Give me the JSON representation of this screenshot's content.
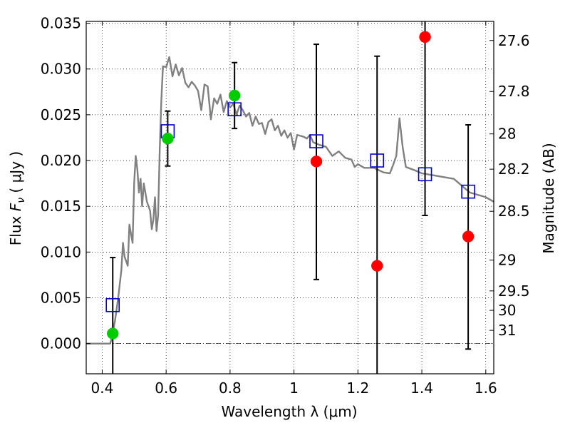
{
  "chart_data": {
    "type": "scatter",
    "title": "",
    "xlabel": "Wavelength  λ (μm)",
    "ylabel": "Flux  F_ν  ( μJy )",
    "ylabel_parts": {
      "prefix": "Flux  ",
      "symbol": "F",
      "subscript": "ν",
      "suffix": "  ( μJy )"
    },
    "y2label": "Magnitude (AB)",
    "xlim": [
      0.35,
      1.625
    ],
    "ylim": [
      -0.0033,
      0.0352
    ],
    "grid": true,
    "x_ticks": [
      {
        "value": 0.4,
        "label": "0.4"
      },
      {
        "value": 0.6,
        "label": "0.6"
      },
      {
        "value": 0.8,
        "label": "0.8"
      },
      {
        "value": 1.0,
        "label": "1"
      },
      {
        "value": 1.2,
        "label": "1.2"
      },
      {
        "value": 1.4,
        "label": "1.4"
      },
      {
        "value": 1.6,
        "label": "1.6"
      }
    ],
    "y_ticks": [
      {
        "value": 0.0,
        "label": "0.000"
      },
      {
        "value": 0.005,
        "label": "0.005"
      },
      {
        "value": 0.01,
        "label": "0.010"
      },
      {
        "value": 0.015,
        "label": "0.015"
      },
      {
        "value": 0.02,
        "label": "0.020"
      },
      {
        "value": 0.025,
        "label": "0.025"
      },
      {
        "value": 0.03,
        "label": "0.030"
      },
      {
        "value": 0.035,
        "label": "0.035"
      }
    ],
    "mag_ticks": [
      {
        "value": 27.6,
        "label": "27.6"
      },
      {
        "value": 27.8,
        "label": "27.8"
      },
      {
        "value": 28.0,
        "label": "28"
      },
      {
        "value": 28.2,
        "label": "28.2"
      },
      {
        "value": 28.5,
        "label": "28.5"
      },
      {
        "value": 29.0,
        "label": "29"
      },
      {
        "value": 29.5,
        "label": "29.5"
      },
      {
        "value": 30.0,
        "label": "30"
      },
      {
        "value": 31.0,
        "label": "31"
      }
    ],
    "series": [
      {
        "name": "model spectrum",
        "kind": "line",
        "color": "#808080",
        "x": [
          0.35,
          0.41,
          0.425,
          0.43,
          0.44,
          0.45,
          0.46,
          0.465,
          0.47,
          0.475,
          0.48,
          0.485,
          0.49,
          0.495,
          0.5,
          0.505,
          0.51,
          0.515,
          0.52,
          0.525,
          0.53,
          0.535,
          0.54,
          0.545,
          0.55,
          0.555,
          0.56,
          0.565,
          0.57,
          0.575,
          0.58,
          0.585,
          0.59,
          0.6,
          0.61,
          0.62,
          0.63,
          0.64,
          0.65,
          0.66,
          0.67,
          0.68,
          0.69,
          0.7,
          0.71,
          0.72,
          0.73,
          0.74,
          0.75,
          0.76,
          0.77,
          0.78,
          0.79,
          0.8,
          0.81,
          0.82,
          0.83,
          0.84,
          0.85,
          0.86,
          0.87,
          0.88,
          0.89,
          0.9,
          0.91,
          0.92,
          0.93,
          0.94,
          0.95,
          0.96,
          0.97,
          0.98,
          0.99,
          1.0,
          1.01,
          1.02,
          1.03,
          1.04,
          1.05,
          1.06,
          1.08,
          1.1,
          1.12,
          1.14,
          1.16,
          1.18,
          1.19,
          1.2,
          1.22,
          1.25,
          1.28,
          1.3,
          1.31,
          1.32,
          1.33,
          1.34,
          1.35,
          1.38,
          1.4,
          1.45,
          1.5,
          1.55,
          1.6,
          1.625
        ],
        "y": [
          0.0,
          0.0,
          0.0,
          0.0006,
          0.0025,
          0.005,
          0.008,
          0.011,
          0.0095,
          0.009,
          0.0085,
          0.013,
          0.012,
          0.011,
          0.0175,
          0.0205,
          0.019,
          0.0165,
          0.018,
          0.015,
          0.0175,
          0.0165,
          0.0155,
          0.015,
          0.0145,
          0.0125,
          0.0135,
          0.016,
          0.0123,
          0.014,
          0.0212,
          0.0265,
          0.0303,
          0.0302,
          0.0313,
          0.0292,
          0.0305,
          0.0293,
          0.0301,
          0.0285,
          0.028,
          0.0286,
          0.0282,
          0.0276,
          0.0255,
          0.0283,
          0.0281,
          0.0245,
          0.0268,
          0.0262,
          0.0272,
          0.0253,
          0.0265,
          0.0258,
          0.0262,
          0.025,
          0.026,
          0.0255,
          0.0248,
          0.0252,
          0.0238,
          0.0248,
          0.024,
          0.0241,
          0.0229,
          0.0242,
          0.0245,
          0.0233,
          0.0238,
          0.0227,
          0.0233,
          0.0225,
          0.023,
          0.0212,
          0.0228,
          0.0227,
          0.0226,
          0.0224,
          0.0228,
          0.022,
          0.0217,
          0.0215,
          0.0205,
          0.021,
          0.0203,
          0.0201,
          0.0193,
          0.0196,
          0.0192,
          0.0192,
          0.0187,
          0.0186,
          0.0195,
          0.0205,
          0.0246,
          0.0215,
          0.0193,
          0.0189,
          0.0186,
          0.0183,
          0.018,
          0.0165,
          0.016,
          0.0155
        ]
      },
      {
        "name": "model photometry",
        "kind": "marker",
        "marker": "open-square",
        "color": "#0000cc",
        "x": [
          0.433,
          0.605,
          0.814,
          1.07,
          1.26,
          1.41,
          1.545
        ],
        "y": [
          0.0042,
          0.0232,
          0.0256,
          0.0221,
          0.02,
          0.0185,
          0.0166
        ]
      },
      {
        "name": "measured flux",
        "kind": "marker",
        "marker": "filled-circle",
        "x": [
          0.433,
          0.605,
          0.814,
          1.07,
          1.26,
          1.41,
          1.545
        ],
        "y": [
          0.0011,
          0.0224,
          0.0271,
          0.0199,
          0.0085,
          0.0335,
          0.0117
        ],
        "colors": [
          "#00cc00",
          "#00cc00",
          "#00cc00",
          "#ff0000",
          "#ff0000",
          "#ff0000",
          "#ff0000"
        ]
      },
      {
        "name": "error bars",
        "kind": "errorbar",
        "color": "#000000",
        "x": [
          0.433,
          0.605,
          0.814,
          1.07,
          1.26,
          1.41,
          1.545
        ],
        "low": [
          -0.0035,
          0.0194,
          0.0235,
          0.007,
          -0.0035,
          0.014,
          -0.0006
        ],
        "high": [
          0.0094,
          0.0254,
          0.0307,
          0.0327,
          0.0314,
          0.0352,
          0.0239
        ]
      }
    ]
  }
}
